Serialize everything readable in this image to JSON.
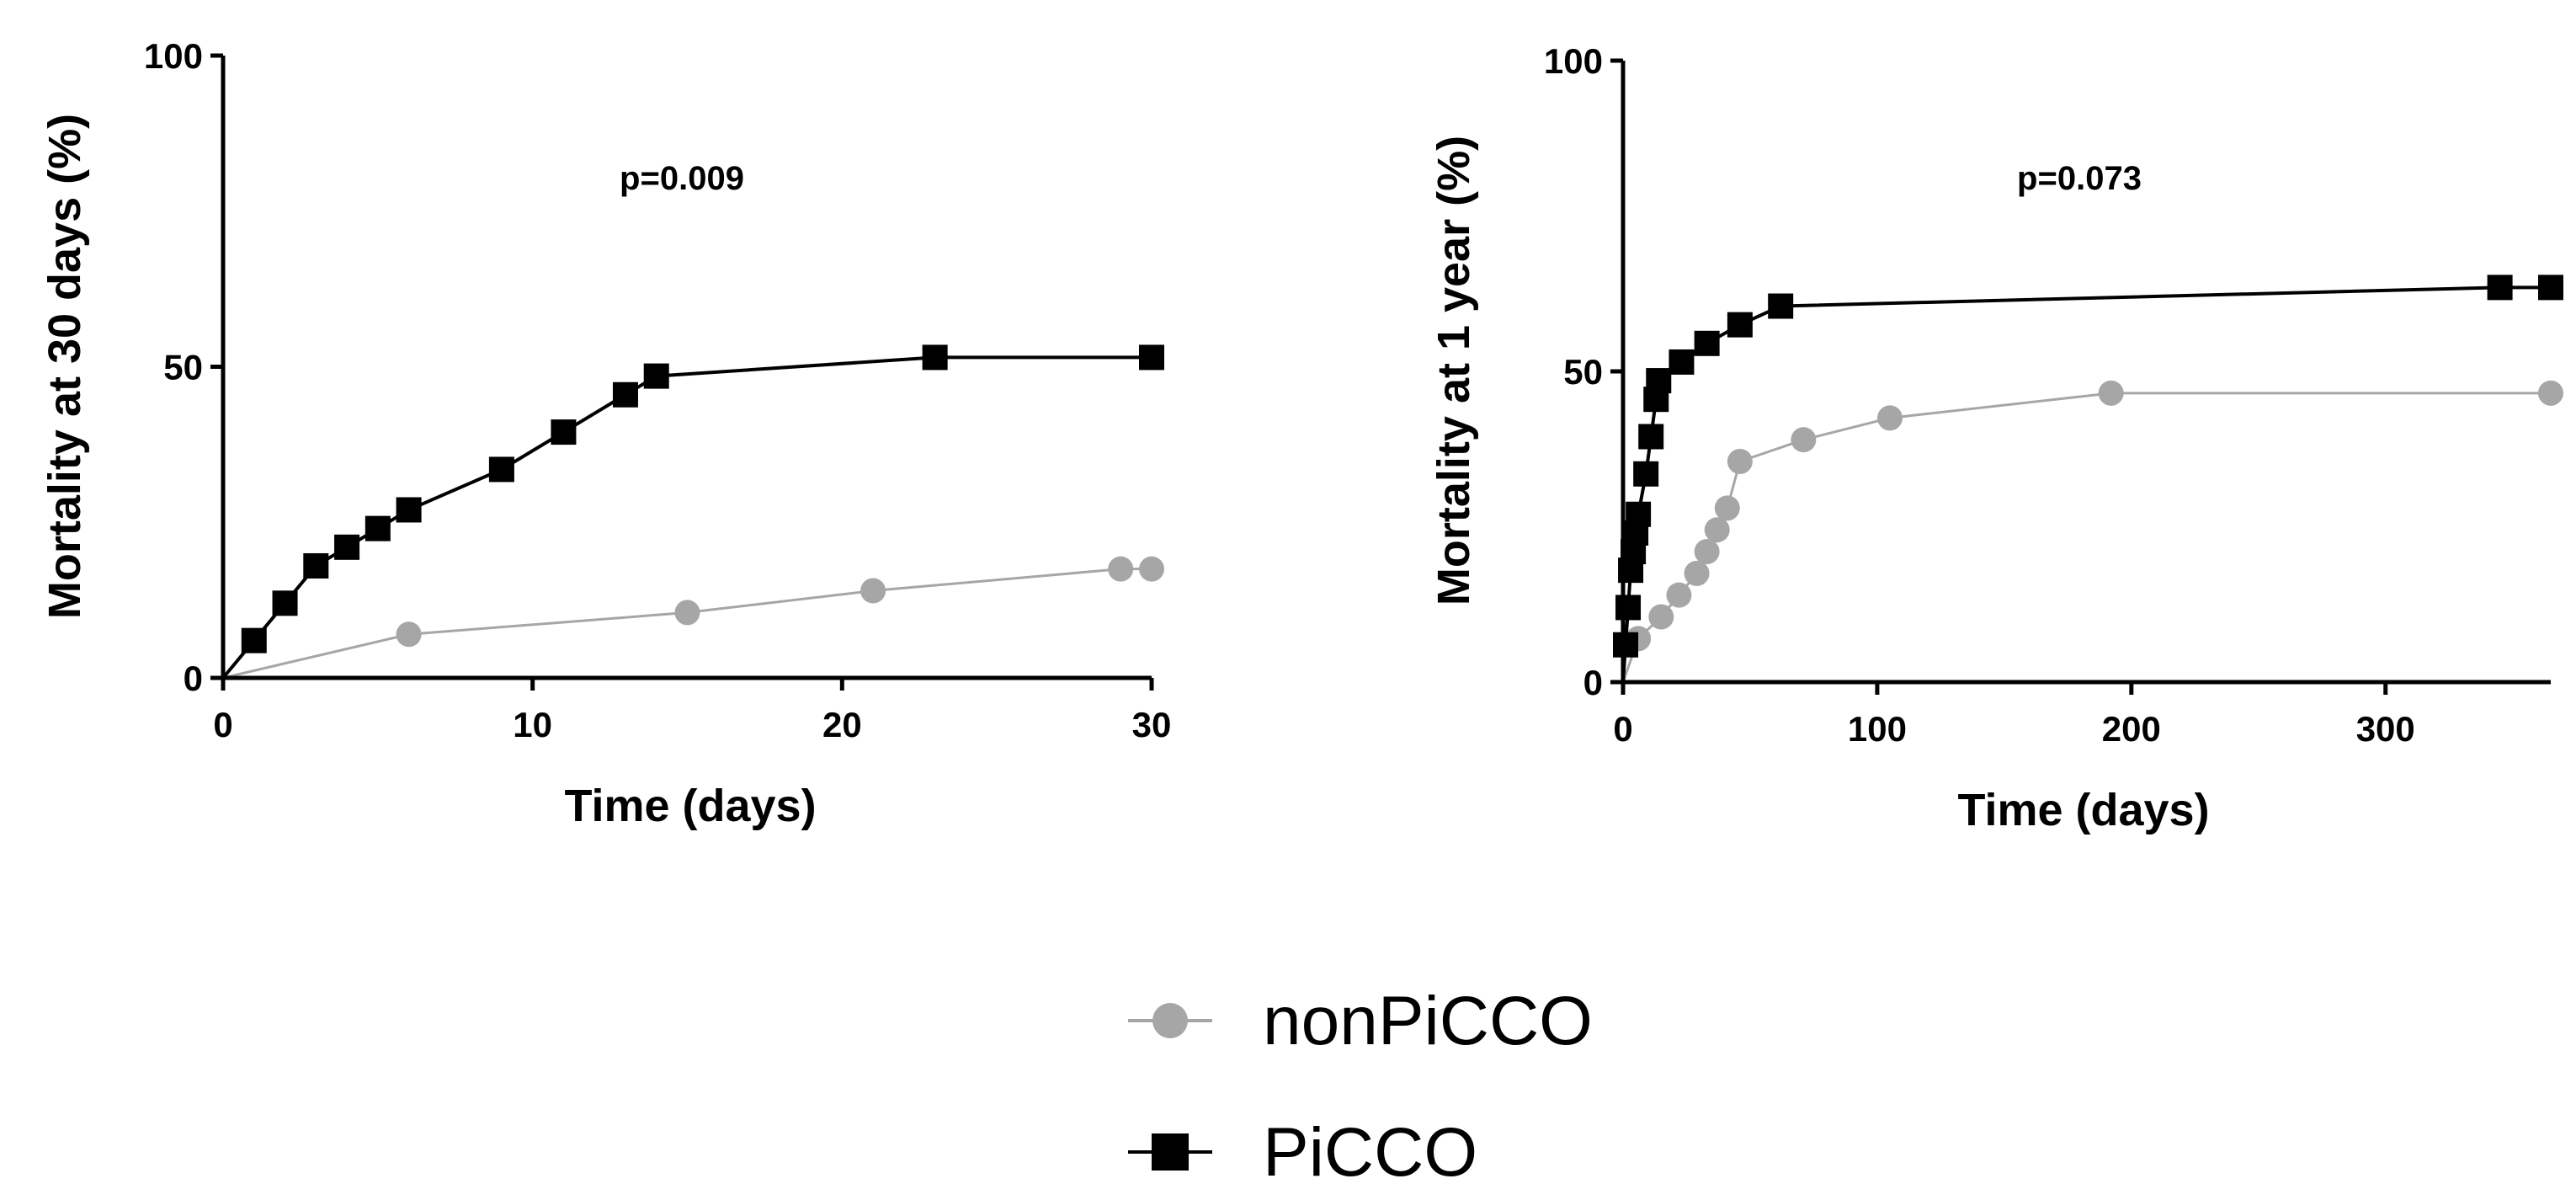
{
  "chart_data": [
    {
      "type": "line",
      "title": "",
      "annotation": "p=0.009",
      "xlabel": "Time (days)",
      "ylabel": "Mortality at 30 days (%)",
      "xlim": [
        0,
        30
      ],
      "ylim": [
        0,
        100
      ],
      "xticks": [
        0,
        10,
        20,
        30
      ],
      "yticks": [
        0,
        50,
        100
      ],
      "series": [
        {
          "name": "nonPiCCO",
          "color": "#a6a6a6",
          "marker": "circle",
          "points": [
            [
              0,
              0
            ],
            [
              6,
              7
            ],
            [
              15,
              10.5
            ],
            [
              21,
              14
            ],
            [
              29,
              17.5
            ],
            [
              30,
              17.5
            ]
          ]
        },
        {
          "name": "PiCCO",
          "color": "#000000",
          "marker": "square",
          "points": [
            [
              0,
              0
            ],
            [
              1,
              6
            ],
            [
              2,
              12
            ],
            [
              3,
              18
            ],
            [
              4,
              21
            ],
            [
              5,
              24
            ],
            [
              6,
              27
            ],
            [
              9,
              33.5
            ],
            [
              11,
              39.5
            ],
            [
              13,
              45.5
            ],
            [
              14,
              48.5
            ],
            [
              23,
              51.5
            ],
            [
              30,
              51.5
            ]
          ]
        }
      ]
    },
    {
      "type": "line",
      "title": "",
      "annotation": "p=0.073",
      "xlabel": "Time (days)",
      "ylabel": "Mortality at 1 year (%)",
      "xlim": [
        0,
        365
      ],
      "ylim": [
        0,
        100
      ],
      "xticks": [
        0,
        100,
        200,
        300
      ],
      "yticks": [
        0,
        50,
        100
      ],
      "series": [
        {
          "name": "nonPiCCO",
          "color": "#a6a6a6",
          "marker": "circle",
          "points": [
            [
              0,
              0
            ],
            [
              6,
              7
            ],
            [
              15,
              10.5
            ],
            [
              22,
              14
            ],
            [
              29,
              17.5
            ],
            [
              33,
              21
            ],
            [
              37,
              24.5
            ],
            [
              41,
              28
            ],
            [
              46,
              35.5
            ],
            [
              71,
              39
            ],
            [
              105,
              42.5
            ],
            [
              192,
              46.5
            ],
            [
              365,
              46.5
            ]
          ]
        },
        {
          "name": "PiCCO",
          "color": "#000000",
          "marker": "square",
          "points": [
            [
              0,
              0
            ],
            [
              1,
              6
            ],
            [
              2,
              12
            ],
            [
              3,
              18
            ],
            [
              4,
              21
            ],
            [
              5,
              24
            ],
            [
              6,
              27
            ],
            [
              9,
              33.5
            ],
            [
              11,
              39.5
            ],
            [
              13,
              45.5
            ],
            [
              14,
              48.5
            ],
            [
              23,
              51.5
            ],
            [
              33,
              54.5
            ],
            [
              46,
              57.5
            ],
            [
              62,
              60.5
            ],
            [
              345,
              63.5
            ],
            [
              365,
              63.5
            ]
          ]
        }
      ]
    }
  ],
  "legend": [
    {
      "name": "nonPiCCO",
      "color": "#a6a6a6",
      "marker": "circle"
    },
    {
      "name": "PiCCO",
      "color": "#000000",
      "marker": "square"
    }
  ]
}
